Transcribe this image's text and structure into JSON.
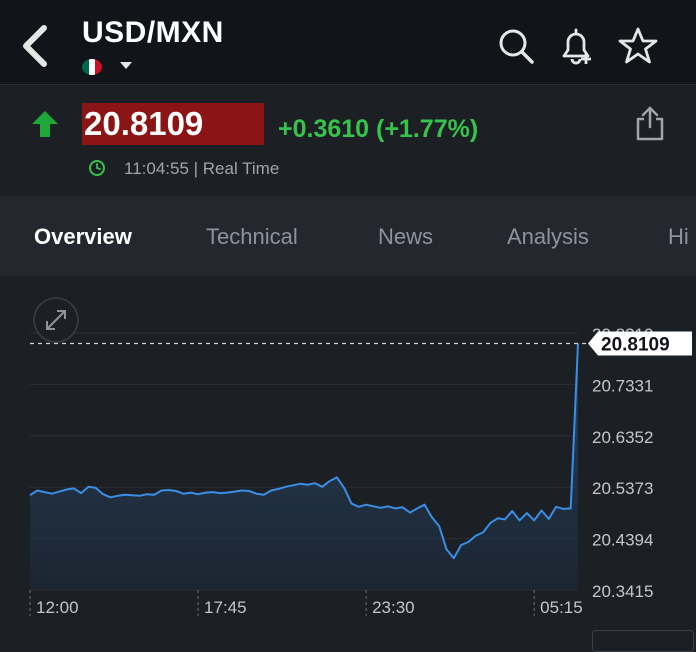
{
  "header": {
    "title": "USD/MXN",
    "flag_colors": [
      "#006847",
      "#ffffff",
      "#ce1126"
    ],
    "icons": [
      "back-chevron-icon",
      "search-icon",
      "bell-plus-icon",
      "star-icon",
      "chevron-down-icon"
    ]
  },
  "quote": {
    "price": "20.8109",
    "change": "+0.3610 (+1.77%)",
    "time": "11:04:55 | Real Time",
    "direction": "up",
    "colors": {
      "up": "#37c24b",
      "price_bg": "#8b1515"
    }
  },
  "tabs": [
    {
      "label": "Overview",
      "active": true
    },
    {
      "label": "Technical",
      "active": false
    },
    {
      "label": "News",
      "active": false
    },
    {
      "label": "Analysis",
      "active": false
    },
    {
      "label": "Hi",
      "active": false
    }
  ],
  "chart_data": {
    "type": "area",
    "ylim": [
      20.3415,
      20.831
    ],
    "yticks": [
      "20.8310",
      "20.7331",
      "20.6352",
      "20.5373",
      "20.4394",
      "20.3415"
    ],
    "xticks": [
      {
        "label": "12:00",
        "index": 0
      },
      {
        "label": "17:45",
        "index": 23
      },
      {
        "label": "23:30",
        "index": 46
      },
      {
        "label": "05:15",
        "index": 69
      }
    ],
    "last_value_label": "20.8109",
    "color": "#3a8ee6",
    "series": [
      {
        "values": [
          20.522,
          20.531,
          20.528,
          20.525,
          20.529,
          20.533,
          20.535,
          20.526,
          20.538,
          20.536,
          20.524,
          20.518,
          20.521,
          20.523,
          20.522,
          20.521,
          20.524,
          20.523,
          20.531,
          20.532,
          20.53,
          20.525,
          20.527,
          20.524,
          20.527,
          20.528,
          20.526,
          20.527,
          20.529,
          20.531,
          20.53,
          20.525,
          20.523,
          20.531,
          20.534,
          20.538,
          20.541,
          20.544,
          20.542,
          20.545,
          20.538,
          20.549,
          20.556,
          20.536,
          20.506,
          20.5,
          20.504,
          20.501,
          20.498,
          20.501,
          20.497,
          20.499,
          20.489,
          20.497,
          20.504,
          20.48,
          20.463,
          20.419,
          20.402,
          20.427,
          20.433,
          20.445,
          20.451,
          20.469,
          20.478,
          20.476,
          20.492,
          20.474,
          20.488,
          20.474,
          20.493,
          20.477,
          20.5,
          20.496,
          20.497,
          20.811
        ]
      }
    ]
  }
}
